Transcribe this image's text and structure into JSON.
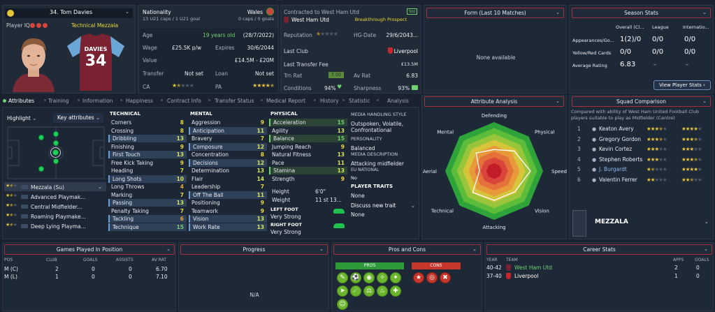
{
  "header": {
    "player_title": "34. Tom Davies",
    "player_iq_label": "Player IQ:",
    "role": "Technical Mezzala",
    "shirt_name": "DAVIES",
    "shirt_number": "34"
  },
  "info": {
    "nationality_label": "Nationality",
    "nationality_value": "Wales",
    "caps_left": "13 U21 caps / 1 U21 goal",
    "caps_right": "0 caps / 0 goals",
    "age_label": "Age",
    "age_value": "19 years old",
    "dob": "(28/7/2022)",
    "wage_label": "Wage",
    "wage_value": "£25.5K p/w",
    "expires_label": "Expires",
    "expires_value": "30/6/2044",
    "value_label": "Value",
    "value_value": "£14.5M - £20M",
    "transfer_label": "Transfer",
    "transfer_value": "Not set",
    "loan_label": "Loan",
    "loan_value": "Not set",
    "ca_label": "CA",
    "pa_label": "PA"
  },
  "contract": {
    "contracted_text": "Contracted to West Ham Utd",
    "badge": "Std",
    "club": "West Ham Utd",
    "prospect": "Breakthrough Prospect",
    "reputation_label": "Reputation",
    "hg_label": "HG-Date",
    "hg_value": "29/6/2043...",
    "last_club_label": "Last Club",
    "last_club_value": "Liverpool",
    "last_fee_label": "Last Transfer Fee",
    "last_fee_value": "£13.5M",
    "trn_label": "Trn Rat",
    "trn_value": "7.02",
    "av_label": "Av Rat",
    "av_value": "6.83",
    "cond_label": "Conditions",
    "cond_value": "94%",
    "sharp_label": "Sharpness",
    "sharp_value": "93%"
  },
  "form": {
    "title": "Form (Last 10 Matches)",
    "empty": "None available"
  },
  "season": {
    "title": "Season Stats",
    "cols": [
      "Overall (Cl...",
      "League",
      "Internatio..."
    ],
    "rows": [
      {
        "label": "Appearances/Go...",
        "v1": "1(2)/0",
        "v2": "0/0",
        "v3": "0/0"
      },
      {
        "label": "Yellow/Red Cards",
        "v1": "0/0",
        "v2": "0/0",
        "v3": "0/0"
      },
      {
        "label": "Average Rating",
        "v1": "6.83",
        "v2": "–",
        "v3": "–"
      }
    ],
    "button": "View Player Stats"
  },
  "tabs": [
    "Attributes",
    "Training",
    "Information",
    "Happiness",
    "Contract Info",
    "Transfer Status",
    "Medical Report",
    "History",
    "Statistic",
    "Analysis"
  ],
  "pitch": {
    "highlight": "Highlight",
    "key_attrs": "Key attributes"
  },
  "roles": [
    "Mezzala (Su)",
    "Advanced Playmak...",
    "Central Midfielder...",
    "Roaming Playmake...",
    "Deep Lying Playma..."
  ],
  "technical": {
    "title": "TECHNICAL",
    "items": [
      {
        "name": "Corners",
        "value": "8"
      },
      {
        "name": "Crossing",
        "value": "8"
      },
      {
        "name": "Dribbling",
        "value": "13"
      },
      {
        "name": "Finishing",
        "value": "9"
      },
      {
        "name": "First Touch",
        "value": "13"
      },
      {
        "name": "Free Kick Taking",
        "value": "9"
      },
      {
        "name": "Heading",
        "value": "7"
      },
      {
        "name": "Long Shots",
        "value": "10"
      },
      {
        "name": "Long Throws",
        "value": "4"
      },
      {
        "name": "Marking",
        "value": "7"
      },
      {
        "name": "Passing",
        "value": "13"
      },
      {
        "name": "Penalty Taking",
        "value": "7"
      },
      {
        "name": "Tackling",
        "value": "6"
      },
      {
        "name": "Technique",
        "value": "15"
      }
    ]
  },
  "mental": {
    "title": "MENTAL",
    "items": [
      {
        "name": "Aggression",
        "value": "9"
      },
      {
        "name": "Anticipation",
        "value": "11"
      },
      {
        "name": "Bravery",
        "value": "7"
      },
      {
        "name": "Composure",
        "value": "12"
      },
      {
        "name": "Concentration",
        "value": "8"
      },
      {
        "name": "Decisions",
        "value": "12"
      },
      {
        "name": "Determination",
        "value": "13"
      },
      {
        "name": "Flair",
        "value": "14"
      },
      {
        "name": "Leadership",
        "value": "7"
      },
      {
        "name": "Off The Ball",
        "value": "11"
      },
      {
        "name": "Positioning",
        "value": "9"
      },
      {
        "name": "Teamwork",
        "value": "9"
      },
      {
        "name": "Vision",
        "value": "13"
      },
      {
        "name": "Work Rate",
        "value": "13"
      }
    ]
  },
  "physical": {
    "title": "PHYSICAL",
    "items": [
      {
        "name": "Acceleration",
        "value": "15"
      },
      {
        "name": "Agility",
        "value": "13"
      },
      {
        "name": "Balance",
        "value": "15"
      },
      {
        "name": "Jumping Reach",
        "value": "9"
      },
      {
        "name": "Natural Fitness",
        "value": "13"
      },
      {
        "name": "Pace",
        "value": "11"
      },
      {
        "name": "Stamina",
        "value": "13"
      },
      {
        "name": "Strength",
        "value": "9"
      }
    ],
    "height_label": "Height",
    "height_value": "6'0\"",
    "weight_label": "Weight",
    "weight_value": "11 st 13...",
    "left_foot_label": "LEFT FOOT",
    "left_foot_value": "Very Strong",
    "right_foot_label": "RIGHT FOOT",
    "right_foot_value": "Very Strong"
  },
  "media": {
    "style_title": "MEDIA HANDLING STYLE",
    "style_value": "Outspoken, Volatile, Confrontational",
    "personality_title": "PERSONALITY",
    "personality_value": "Balanced",
    "desc_title": "MEDIA DESCRIPTION",
    "desc_value": "Attacking midfielder",
    "eu_title": "EU NATIONAL",
    "eu_value": "No",
    "traits_title": "PLAYER TRAITS",
    "traits_value": "None",
    "discuss": "Discuss new trait",
    "traits_value2": "None"
  },
  "analysis": {
    "title": "Attribute Analysis",
    "labels": [
      "Defending",
      "Physical",
      "Speed",
      "Vision",
      "Attacking",
      "Technical",
      "Aerial",
      "Mental"
    ],
    "values": [
      0.44,
      0.58,
      0.74,
      0.6,
      0.6,
      0.62,
      0.3,
      0.52
    ]
  },
  "squad": {
    "title": "Squad Comparison",
    "desc": "Compared with ability of West Ham United Football Club players suitable to play as Midfielder (Centre)",
    "rows": [
      {
        "num": "1",
        "name": "Keaton Avery",
        "ca": 3.5,
        "pa": 4.0
      },
      {
        "num": "2",
        "name": "Gregory Gordon",
        "ca": 3.5,
        "pa": 3.5
      },
      {
        "num": "3",
        "name": "Kevin Cortez",
        "ca": 3.0,
        "pa": 3.0
      },
      {
        "num": "4",
        "name": "Stephen Roberts",
        "ca": 3.0,
        "pa": 3.5
      },
      {
        "num": "5",
        "name": "J. Burgardt",
        "ca": 1.5,
        "pa": 4.0
      },
      {
        "num": "6",
        "name": "Valentin Ferrer",
        "ca": 2.0,
        "pa": 2.5
      }
    ],
    "role_label": "MEZZALA"
  },
  "games": {
    "title": "Games Played In Position",
    "headers": [
      "POS",
      "CLUB",
      "GOALS",
      "ASSISTS",
      "AV RAT"
    ],
    "rows": [
      {
        "pos": "M (C)",
        "club": "2",
        "goals": "0",
        "assists": "0",
        "avrat": "6.70"
      },
      {
        "pos": "M (L)",
        "club": "1",
        "goals": "0",
        "assists": "0",
        "avrat": "7.10"
      }
    ]
  },
  "progress": {
    "title": "Progress",
    "empty": "N/A"
  },
  "proscons": {
    "title": "Pros and Cons",
    "pros_label": "PROS",
    "cons_label": "CONS"
  },
  "career": {
    "title": "Career Stats",
    "headers": [
      "YEAR",
      "TEAM",
      "APPS",
      "GOALS"
    ],
    "rows": [
      {
        "year": "40-42",
        "team": "West Ham Utd",
        "apps": "2",
        "goals": "0"
      },
      {
        "year": "37-40",
        "team": "Liverpool",
        "apps": "1",
        "goals": "0"
      }
    ]
  },
  "colors": {
    "accent_red": "#a3303a",
    "attr_green": "#6fd16f",
    "attr_yellow": "#e8d83b",
    "star": "#e8c43a",
    "pros_green": "#6ab52c",
    "cons_red": "#c7362a"
  }
}
